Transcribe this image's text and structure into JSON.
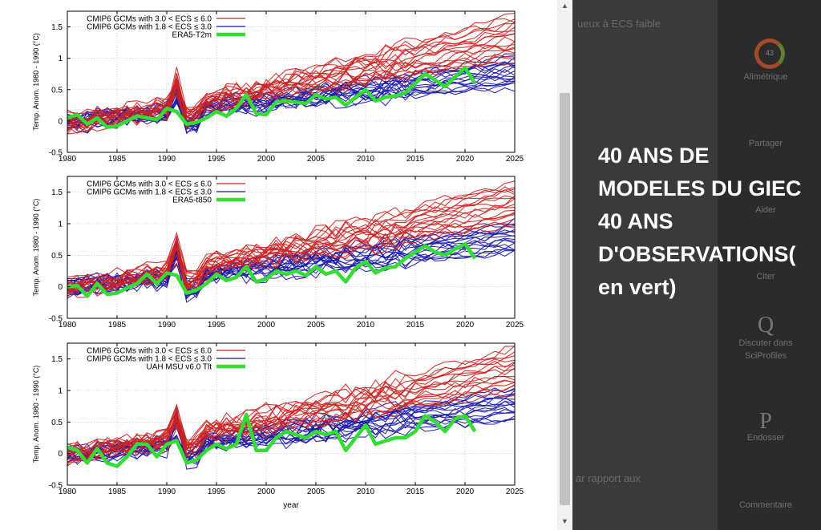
{
  "background_page": {
    "text_fragments": [
      "ueux à ECS faible",
      "ar rapport aux"
    ],
    "sidebar": [
      {
        "label": "Alimétrique",
        "icon": "gauge-icon",
        "badge": "43"
      },
      {
        "label": "Partager",
        "icon": "share-icon"
      },
      {
        "label": "Aider",
        "icon": "help-icon"
      },
      {
        "label": "Citer",
        "icon": "quote-icon"
      },
      {
        "label": "Discuter dans SciProfiles",
        "icon": "q-icon",
        "glyph": "Q"
      },
      {
        "label": "Endosser",
        "icon": "p-icon",
        "glyph": "P"
      },
      {
        "label": "Commentaire",
        "icon": "comment-icon"
      }
    ]
  },
  "caption": {
    "lines": [
      "40 ANS DE",
      "MODELES DU GIEC",
      "40 ANS",
      "D'OBSERVATIONS(",
      "en vert)"
    ],
    "color": "#ffffff"
  },
  "colors": {
    "high_ecs": "#cc2222",
    "low_ecs": "#1a1aa8",
    "observation": "#33dd33",
    "background": "#000000"
  },
  "chart_data": [
    {
      "type": "line",
      "ylabel": "Temp. Anom. 1980 - 1990 (°C)",
      "xlabel": "",
      "xlim": [
        1980,
        2025
      ],
      "ylim": [
        -0.5,
        1.75
      ],
      "xticks": [
        "1980",
        "1985",
        "1990",
        "1995",
        "2000",
        "2005",
        "2010",
        "2015",
        "2020",
        "2025"
      ],
      "yticks": [
        "1.5",
        "1",
        "0.5",
        "0",
        "-0.5"
      ],
      "legend": [
        {
          "label": "CMIP6 GCMs with 3.0 < ECS ≤ 6.0",
          "color": "#cc2222"
        },
        {
          "label": "CMIP6 GCMs with 1.8 < ECS ≤ 3.0",
          "color": "#1a1aa8"
        },
        {
          "label": "ERA5-T2m",
          "color": "#33dd33"
        }
      ],
      "legend_position": "top-left",
      "grid": true,
      "observation": {
        "name": "ERA5-T2m",
        "x": [
          1980,
          1981,
          1982,
          1983,
          1984,
          1985,
          1986,
          1987,
          1988,
          1989,
          1990,
          1991,
          1992,
          1993,
          1994,
          1995,
          1996,
          1997,
          1998,
          1999,
          2000,
          2001,
          2002,
          2003,
          2004,
          2005,
          2006,
          2007,
          2008,
          2009,
          2010,
          2011,
          2012,
          2013,
          2014,
          2015,
          2016,
          2017,
          2018,
          2019,
          2020,
          2021
        ],
        "y": [
          0.05,
          0.1,
          -0.05,
          0.05,
          -0.1,
          -0.08,
          0.0,
          0.08,
          0.05,
          0.02,
          0.2,
          0.15,
          -0.05,
          -0.02,
          0.05,
          0.15,
          0.08,
          0.2,
          0.42,
          0.12,
          0.1,
          0.3,
          0.32,
          0.3,
          0.28,
          0.42,
          0.35,
          0.38,
          0.25,
          0.38,
          0.5,
          0.32,
          0.38,
          0.4,
          0.45,
          0.6,
          0.75,
          0.65,
          0.55,
          0.7,
          0.85,
          0.6
        ]
      },
      "models": {
        "high_ecs_trend_2025": [
          1.0,
          1.7
        ],
        "low_ecs_trend_2025": [
          0.55,
          1.05
        ],
        "count_high": 18,
        "count_low": 18
      }
    },
    {
      "type": "line",
      "ylabel": "Temp. Anom. 1980 - 1990 (°C)",
      "xlabel": "",
      "xlim": [
        1980,
        2025
      ],
      "ylim": [
        -0.5,
        1.75
      ],
      "xticks": [
        "1980",
        "1985",
        "1990",
        "1995",
        "2000",
        "2005",
        "2010",
        "2015",
        "2020",
        "2025"
      ],
      "yticks": [
        "1.5",
        "1",
        "0.5",
        "0",
        "-0.5"
      ],
      "legend": [
        {
          "label": "CMIP6 GCMs with 3.0 < ECS ≤ 6.0",
          "color": "#cc2222"
        },
        {
          "label": "CMIP6 GCMs with 1.8 < ECS ≤ 3.0",
          "color": "#1a1aa8"
        },
        {
          "label": "ERA5-t850",
          "color": "#33dd33"
        }
      ],
      "legend_position": "top-right",
      "grid": true,
      "observation": {
        "name": "ERA5-t850",
        "x": [
          1980,
          1981,
          1982,
          1983,
          1984,
          1985,
          1986,
          1987,
          1988,
          1989,
          1990,
          1991,
          1992,
          1993,
          1994,
          1995,
          1996,
          1997,
          1998,
          1999,
          2000,
          2001,
          2002,
          2003,
          2004,
          2005,
          2006,
          2007,
          2008,
          2009,
          2010,
          2011,
          2012,
          2013,
          2014,
          2015,
          2016,
          2017,
          2018,
          2019,
          2020,
          2021
        ],
        "y": [
          0.0,
          0.02,
          -0.15,
          0.05,
          -0.12,
          -0.1,
          -0.02,
          0.05,
          0.2,
          0.05,
          0.22,
          0.18,
          -0.1,
          -0.05,
          0.05,
          0.2,
          0.1,
          0.15,
          0.32,
          0.08,
          0.12,
          0.25,
          0.2,
          0.25,
          0.18,
          0.32,
          0.2,
          0.25,
          0.08,
          0.3,
          0.4,
          0.22,
          0.3,
          0.32,
          0.45,
          0.55,
          0.65,
          0.55,
          0.5,
          0.6,
          0.68,
          0.45
        ]
      },
      "models": {
        "high_ecs_trend_2025": [
          1.0,
          1.7
        ],
        "low_ecs_trend_2025": [
          0.55,
          1.05
        ],
        "count_high": 18,
        "count_low": 18
      }
    },
    {
      "type": "line",
      "ylabel": "Temp. Anom. 1980 - 1990 (°C)",
      "xlabel": "year",
      "xlim": [
        1980,
        2025
      ],
      "ylim": [
        -0.5,
        1.75
      ],
      "xticks": [
        "1980",
        "1985",
        "1990",
        "1995",
        "2000",
        "2005",
        "2010",
        "2015",
        "2020",
        "2025"
      ],
      "yticks": [
        "1.5",
        "1",
        "0.5",
        "0",
        "-0.5"
      ],
      "legend": [
        {
          "label": "CMIP6 GCMs with 3.0 < ECS ≤ 6.0",
          "color": "#cc2222"
        },
        {
          "label": "CMIP6 GCMs with 1.8 < ECS ≤ 3.0",
          "color": "#1a1aa8"
        },
        {
          "label": "UAH MSU v6.0 Tlt",
          "color": "#33dd33"
        }
      ],
      "legend_position": "top-right",
      "grid": true,
      "observation": {
        "name": "UAH MSU v6.0 Tlt",
        "x": [
          1980,
          1981,
          1982,
          1983,
          1984,
          1985,
          1986,
          1987,
          1988,
          1989,
          1990,
          1991,
          1992,
          1993,
          1994,
          1995,
          1996,
          1997,
          1998,
          1999,
          2000,
          2001,
          2002,
          2003,
          2004,
          2005,
          2006,
          2007,
          2008,
          2009,
          2010,
          2011,
          2012,
          2013,
          2014,
          2015,
          2016,
          2017,
          2018,
          2019,
          2020,
          2021
        ],
        "y": [
          0.1,
          0.05,
          -0.15,
          0.08,
          -0.15,
          -0.2,
          -0.05,
          0.15,
          0.15,
          -0.05,
          0.15,
          0.2,
          -0.15,
          -0.1,
          0.05,
          0.15,
          0.08,
          0.15,
          0.62,
          0.05,
          0.05,
          0.25,
          0.35,
          0.3,
          0.25,
          0.35,
          0.3,
          0.35,
          0.05,
          0.25,
          0.45,
          0.15,
          0.2,
          0.25,
          0.25,
          0.35,
          0.6,
          0.5,
          0.35,
          0.55,
          0.6,
          0.35
        ]
      },
      "models": {
        "high_ecs_trend_2025": [
          1.0,
          1.7
        ],
        "low_ecs_trend_2025": [
          0.55,
          1.05
        ],
        "count_high": 18,
        "count_low": 18
      }
    }
  ]
}
